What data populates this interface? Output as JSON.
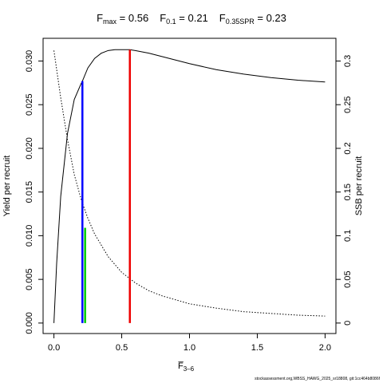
{
  "chart_data": {
    "type": "line",
    "title_parts": [
      {
        "base": "F",
        "sub": "max",
        "value": " = 0.56"
      },
      {
        "base": "F",
        "sub": "0.1",
        "value": " = 0.21"
      },
      {
        "base": "F",
        "sub": "0.35SPR",
        "value": " = 0.23"
      }
    ],
    "xlabel": {
      "base": "F̅",
      "sub": "3–6"
    },
    "ylabel_left": "Yield per recruit",
    "ylabel_right": "SSB per recruit",
    "xlim": [
      -0.08,
      2.08
    ],
    "xticks": [
      0.0,
      0.5,
      1.0,
      1.5,
      2.0
    ],
    "xtick_labels": [
      "0.0",
      "0.5",
      "1.0",
      "1.5",
      "2.0"
    ],
    "ylim_left": [
      -0.0012,
      0.0326
    ],
    "yticks_left": [
      0.0,
      0.005,
      0.01,
      0.015,
      0.02,
      0.025,
      0.03
    ],
    "ytick_labels_left": [
      "0.000",
      "0.005",
      "0.010",
      "0.015",
      "0.020",
      "0.025",
      "0.030"
    ],
    "ylim_right": [
      -0.012,
      0.326
    ],
    "yticks_right": [
      0.0,
      0.05,
      0.1,
      0.15,
      0.2,
      0.25,
      0.3
    ],
    "ytick_labels_right": [
      "0",
      "0.05",
      "0.1",
      "0.15",
      "0.2",
      "0.25",
      "0.3"
    ],
    "series": [
      {
        "axis": "left",
        "style": "solid",
        "color": "#000000",
        "x": [
          0.0,
          0.02,
          0.05,
          0.1,
          0.15,
          0.2,
          0.21,
          0.25,
          0.3,
          0.35,
          0.4,
          0.45,
          0.5,
          0.56,
          0.6,
          0.7,
          0.8,
          0.9,
          1.0,
          1.2,
          1.4,
          1.6,
          1.8,
          2.0
        ],
        "values": [
          0.0,
          0.0068,
          0.0145,
          0.0217,
          0.0256,
          0.0274,
          0.0277,
          0.0292,
          0.0303,
          0.0309,
          0.0312,
          0.0313,
          0.0313,
          0.0313,
          0.0312,
          0.0309,
          0.0305,
          0.0301,
          0.0297,
          0.029,
          0.0285,
          0.0281,
          0.0278,
          0.0276
        ]
      },
      {
        "axis": "right",
        "style": "dotted",
        "color": "#000000",
        "x": [
          0.0,
          0.05,
          0.1,
          0.15,
          0.2,
          0.25,
          0.3,
          0.4,
          0.5,
          0.6,
          0.7,
          0.8,
          1.0,
          1.2,
          1.4,
          1.6,
          1.8,
          2.0
        ],
        "values": [
          0.312,
          0.258,
          0.21,
          0.17,
          0.142,
          0.12,
          0.102,
          0.076,
          0.058,
          0.046,
          0.037,
          0.031,
          0.022,
          0.017,
          0.013,
          0.011,
          0.009,
          0.008
        ]
      }
    ],
    "reference_lines": [
      {
        "label": "F0.1",
        "x": 0.21,
        "ymax": 0.0277,
        "color": "#0000ff"
      },
      {
        "label": "F0.35SPR",
        "x": 0.23,
        "ymax": 0.0109,
        "color": "#00cc00"
      },
      {
        "label": "Fmax",
        "x": 0.56,
        "ymax": 0.0313,
        "color": "#ee0000"
      }
    ]
  },
  "credit": "stockassessment.org,WBSS_HAWG_2025_sr18808, git:1cc464b8086f"
}
